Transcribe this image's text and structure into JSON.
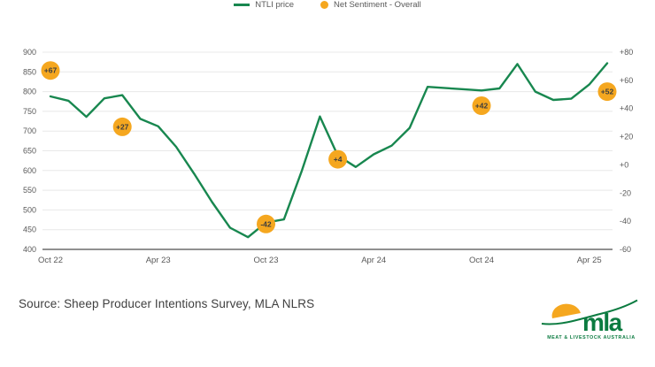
{
  "chart_data": {
    "type": "line",
    "title": "",
    "x_unit": "month",
    "x_start_label": "Oct 22",
    "x_ticks": [
      {
        "label": "Oct 22",
        "month_index": 0
      },
      {
        "label": "Apr 23",
        "month_index": 6
      },
      {
        "label": "Oct 23",
        "month_index": 12
      },
      {
        "label": "Apr 24",
        "month_index": 18
      },
      {
        "label": "Oct 24",
        "month_index": 24
      },
      {
        "label": "Apr 25",
        "month_index": 30
      }
    ],
    "left_axis": {
      "min": 400,
      "max": 900,
      "ticks": [
        900,
        850,
        800,
        750,
        700,
        650,
        600,
        550,
        500,
        450,
        400
      ]
    },
    "right_axis": {
      "min": -60,
      "max": 80,
      "ticks": [
        "+80",
        "+60",
        "+40",
        "+20",
        "+0",
        "-20",
        "-40",
        "-60"
      ]
    },
    "grid": true,
    "legend_position": "bottom",
    "series": [
      {
        "name": "NTLI price",
        "type": "line",
        "axis": "left",
        "color": "#18874F",
        "values": [
          788,
          777,
          736,
          783,
          791,
          731,
          712,
          660,
          592,
          520,
          455,
          431,
          468,
          476,
          600,
          737,
          638,
          609,
          641,
          663,
          708,
          812,
          809,
          806,
          803,
          808,
          870,
          800,
          779,
          782,
          818,
          872
        ]
      },
      {
        "name": "Net Sentiment - Overall",
        "type": "point",
        "axis": "right",
        "color": "#F5A71F",
        "points": [
          {
            "month_index": 0,
            "value": 67,
            "label": "+67"
          },
          {
            "month_index": 4,
            "value": 27,
            "label": "+27"
          },
          {
            "month_index": 12,
            "value": -42,
            "label": "-42"
          },
          {
            "month_index": 16,
            "value": 4,
            "label": "+4"
          },
          {
            "month_index": 24,
            "value": 42,
            "label": "+42"
          },
          {
            "month_index": 31,
            "value": 52,
            "label": "+52"
          }
        ]
      }
    ],
    "colors": {
      "grid": "#E8E8E8",
      "axis_line": "#4D4D4D",
      "tick_text": "#595959",
      "point_label": "#3D3D3D",
      "background": "#FFFFFF"
    }
  },
  "legend": {
    "items": [
      {
        "label": "NTLI price",
        "swatch": "line"
      },
      {
        "label": "Net Sentiment - Overall",
        "swatch": "dot"
      }
    ]
  },
  "source": {
    "text": "Source: Sheep Producer Intentions Survey, MLA NLRS"
  },
  "logo": {
    "brand": "mla",
    "tagline": "MEAT & LIVESTOCK AUSTRALIA",
    "green": "#0B7B40",
    "orange": "#F5A71F"
  }
}
